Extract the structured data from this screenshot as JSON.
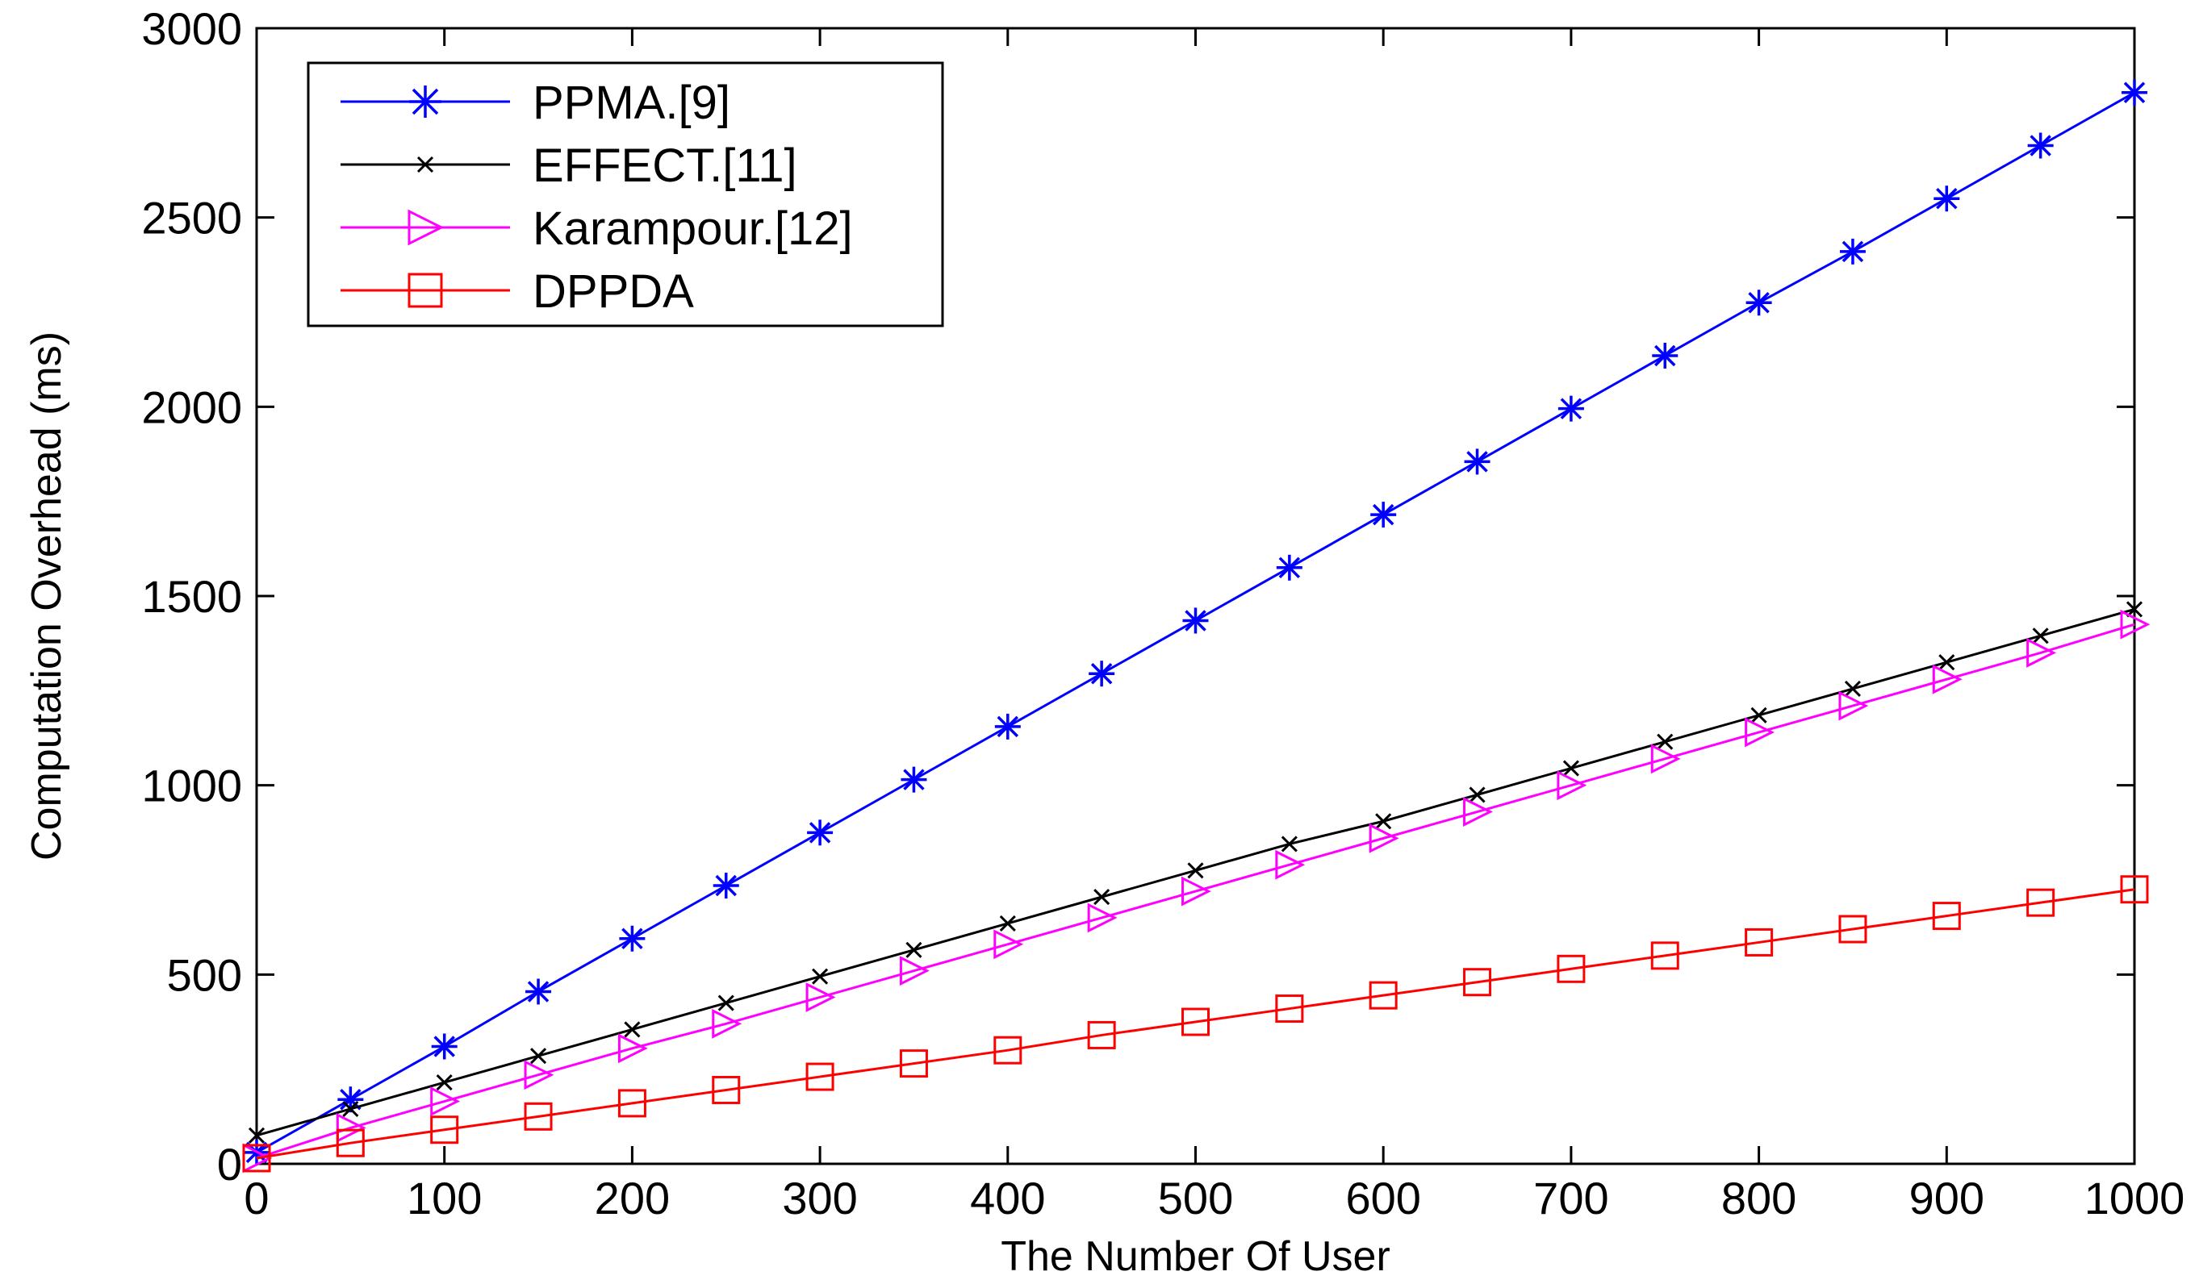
{
  "chart_data": {
    "type": "line",
    "title": "",
    "xlabel": "The Number Of User",
    "ylabel": "Computation Overhead (ms)",
    "xlim": [
      0,
      1000
    ],
    "ylim": [
      0,
      3000
    ],
    "xticks": [
      0,
      100,
      200,
      300,
      400,
      500,
      600,
      700,
      800,
      900,
      1000
    ],
    "yticks": [
      0,
      500,
      1000,
      1500,
      2000,
      2500,
      3000
    ],
    "grid": false,
    "legend_position": "top-left",
    "x": [
      0,
      50,
      100,
      150,
      200,
      250,
      300,
      350,
      400,
      450,
      500,
      550,
      600,
      650,
      700,
      750,
      800,
      850,
      900,
      950,
      1000
    ],
    "series": [
      {
        "name": "PPMA.[9]",
        "color": "#0000ff",
        "marker": "asterisk",
        "values": [
          30,
          170,
          310,
          455,
          595,
          735,
          875,
          1015,
          1155,
          1295,
          1435,
          1575,
          1715,
          1855,
          1995,
          2135,
          2275,
          2410,
          2550,
          2690,
          2830
        ]
      },
      {
        "name": "EFFECT.[11]",
        "color": "#000000",
        "marker": "x",
        "values": [
          75,
          145,
          215,
          285,
          355,
          425,
          495,
          565,
          635,
          705,
          775,
          845,
          905,
          975,
          1045,
          1115,
          1185,
          1255,
          1325,
          1395,
          1465
        ]
      },
      {
        "name": "Karampour.[12]",
        "color": "#ff00ff",
        "marker": "triangle-right",
        "values": [
          15,
          95,
          165,
          235,
          305,
          370,
          440,
          510,
          580,
          650,
          720,
          790,
          860,
          930,
          1000,
          1070,
          1140,
          1210,
          1280,
          1350,
          1425
        ]
      },
      {
        "name": "DPPDA",
        "color": "#ff0000",
        "marker": "square",
        "values": [
          15,
          55,
          90,
          125,
          160,
          195,
          230,
          265,
          300,
          340,
          375,
          410,
          445,
          480,
          515,
          550,
          585,
          620,
          655,
          690,
          725
        ]
      }
    ]
  }
}
